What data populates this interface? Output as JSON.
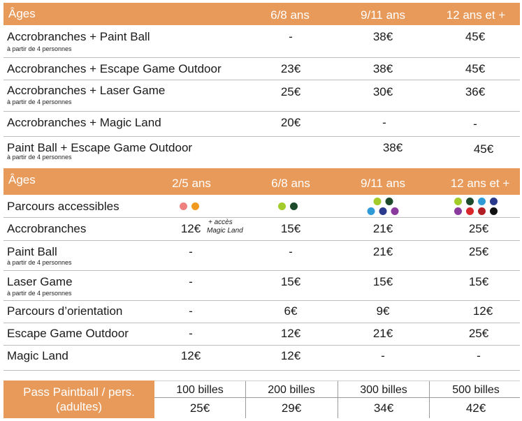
{
  "table1": {
    "header": {
      "label": "Âges",
      "cols": [
        "6/8 ans",
        "9/11 ans",
        "12 ans et +"
      ]
    },
    "rows": [
      {
        "label": "Accrobranches + Paint Ball",
        "note": "à partir de 4 personnes",
        "values": [
          "-",
          "38€",
          "45€"
        ]
      },
      {
        "label": "Accrobranches + Escape Game Outdoor",
        "note": "",
        "values": [
          "23€",
          "38€",
          "45€"
        ]
      },
      {
        "label": "Accrobranches + Laser Game",
        "note": "à partir de 4 personnes",
        "values": [
          "25€",
          "30€",
          "36€"
        ]
      },
      {
        "label": "Accrobranches + Magic Land",
        "note": "",
        "values": [
          "20€",
          "-",
          "-"
        ]
      },
      {
        "label": "Paint Ball + Escape Game Outdoor",
        "note": "à partir de 4 personnes",
        "values": [
          "",
          "38€",
          "45€"
        ]
      }
    ]
  },
  "table2": {
    "header": {
      "label": "Âges",
      "cols": [
        "2/5 ans",
        "6/8 ans",
        "9/11 ans",
        "12 ans et +"
      ]
    },
    "parcours_label": "Parcours accessibles",
    "parcours_colors": {
      "col1": [
        "#ef8080",
        "#f29a1e"
      ],
      "col2": [
        "#a3cc2a",
        "#1d4a2a"
      ],
      "col3": [
        "#a3cc2a",
        "#1d4a2a",
        "#2e9ad6",
        "#2a3a8c",
        "#8a3a9c"
      ],
      "col4": [
        "#a3cc2a",
        "#1d4a2a",
        "#2e9ad6",
        "#2a3a8c",
        "#8a3a9c",
        "#d8262b",
        "#b01e24",
        "#111111"
      ]
    },
    "rows": [
      {
        "label": "Accrobranches",
        "note": "",
        "values": [
          "12€",
          "15€",
          "21€",
          "25€"
        ],
        "extra_line1": "+ accès",
        "extra_line2": "Magic Land"
      },
      {
        "label": "Paint Ball",
        "note": "à partir de 4 personnes",
        "values": [
          "-",
          "-",
          "21€",
          "25€"
        ]
      },
      {
        "label": "Laser Game",
        "note": "à partir de 4 personnes",
        "values": [
          "-",
          "15€",
          "15€",
          "15€"
        ]
      },
      {
        "label": "Parcours d’orientation",
        "note": "",
        "values": [
          "-",
          "6€",
          "9€",
          "12€"
        ]
      },
      {
        "label": "Escape Game Outdoor",
        "note": "",
        "values": [
          "-",
          "12€",
          "21€",
          "25€"
        ]
      },
      {
        "label": "Magic Land",
        "note": "",
        "values": [
          "12€",
          "12€",
          "-",
          "-"
        ]
      }
    ]
  },
  "pass": {
    "title_line1": "Pass Paintball / pers.",
    "title_line2": "(adultes)",
    "cols": [
      "100 billes",
      "200 billes",
      "300 billes",
      "500 billes"
    ],
    "prices": [
      "25€",
      "29€",
      "34€",
      "42€"
    ]
  },
  "colors": {
    "accent": "#e89a5a"
  }
}
